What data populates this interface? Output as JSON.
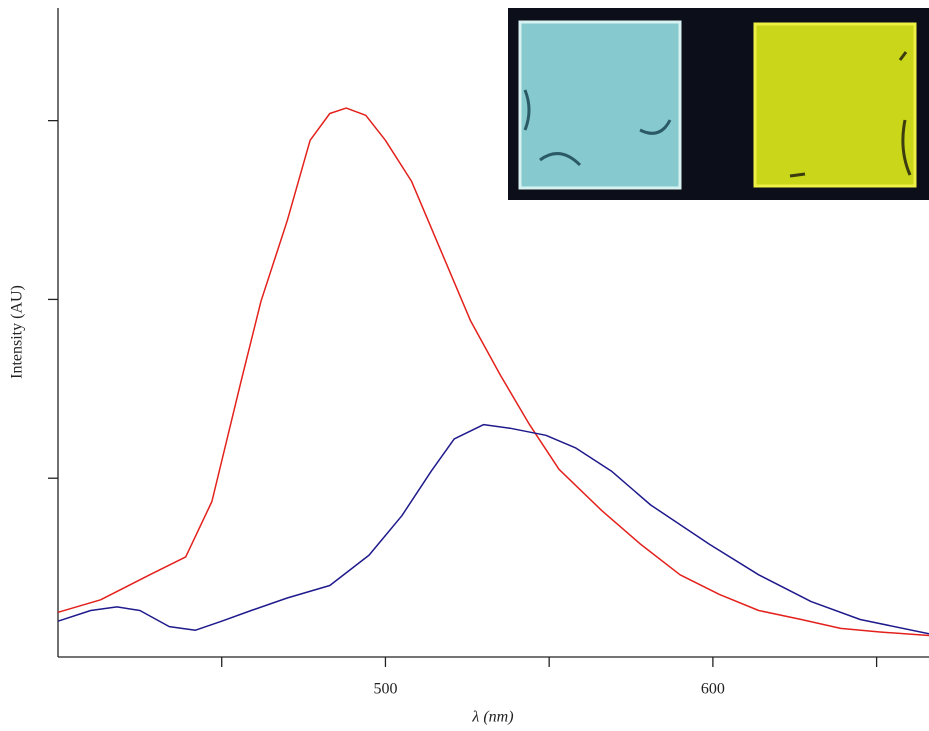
{
  "chart_data": {
    "type": "line",
    "xlabel": "λ (nm)",
    "ylabel": "Intensity (AU)",
    "xlim": [
      400,
      666
    ],
    "ylim": [
      0,
      3.63
    ],
    "xticks": [
      500,
      600
    ],
    "xtickmarks": [
      450,
      550,
      650
    ],
    "ytickmarks": [
      1,
      2,
      3
    ],
    "series": [
      {
        "color": "#e3211c",
        "x": [
          400,
          413,
          428,
          439,
          447,
          456,
          462,
          470,
          477,
          483,
          488,
          494,
          500,
          508,
          517,
          526,
          535,
          544,
          553,
          566,
          578,
          590,
          602,
          614,
          627,
          639,
          651,
          666
        ],
        "values": [
          0.25,
          0.32,
          0.46,
          0.56,
          0.87,
          1.55,
          1.99,
          2.44,
          2.89,
          3.04,
          3.07,
          3.03,
          2.89,
          2.66,
          2.27,
          1.88,
          1.58,
          1.3,
          1.05,
          0.82,
          0.63,
          0.46,
          0.35,
          0.26,
          0.21,
          0.16,
          0.14,
          0.12
        ]
      },
      {
        "color": "#1f1a8c",
        "x": [
          400,
          410,
          418,
          425,
          434,
          442,
          450,
          459,
          470,
          483,
          495,
          505,
          514,
          521,
          530,
          538,
          549,
          558,
          569,
          581,
          599,
          614,
          630,
          645,
          666
        ],
        "values": [
          0.2,
          0.26,
          0.28,
          0.26,
          0.17,
          0.15,
          0.2,
          0.26,
          0.33,
          0.4,
          0.57,
          0.79,
          1.04,
          1.22,
          1.3,
          1.28,
          1.24,
          1.17,
          1.04,
          0.85,
          0.63,
          0.46,
          0.31,
          0.21,
          0.13
        ]
      }
    ]
  }
}
